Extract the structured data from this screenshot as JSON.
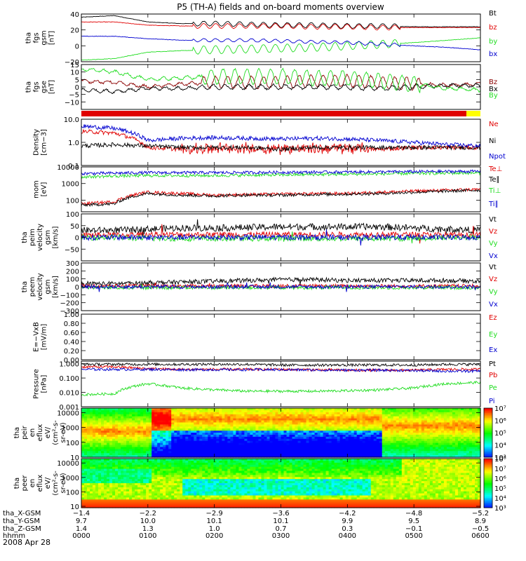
{
  "title": "P5 (TH-A) fields and on-board moments overview",
  "date": "2008 Apr 28",
  "colors": {
    "black": "#000000",
    "red": "#e00000",
    "green": "#22dd22",
    "blue": "#0000d0",
    "darkred": "#8b0000",
    "yellow": "#ffff00"
  },
  "chart_data": [
    {
      "type": "line",
      "id": "fgs-gsm",
      "ylabel": [
        "tha",
        "fgs",
        "gsm",
        "[nT]"
      ],
      "ylim": [
        -20,
        40
      ],
      "ticks": [
        {
          "v": 40,
          "t": "40"
        },
        {
          "v": 20,
          "t": "20"
        },
        {
          "v": 0,
          "t": "0"
        },
        {
          "v": -20,
          "t": "−20"
        }
      ],
      "series": [
        {
          "name": "Bt",
          "color": "black",
          "base": [
            36,
            38,
            30,
            28,
            28,
            27,
            26,
            26,
            25,
            25,
            24,
            24,
            24
          ]
        },
        {
          "name": "bz",
          "color": "red",
          "base": [
            30,
            30,
            26,
            25,
            25,
            25,
            25,
            24,
            24,
            23,
            23,
            23,
            23
          ]
        },
        {
          "name": "by",
          "color": "green",
          "base": [
            -18,
            -16,
            -8,
            -6,
            -5,
            -4,
            -3,
            -2,
            0,
            2,
            4,
            7,
            10
          ]
        },
        {
          "name": "bx",
          "color": "blue",
          "base": [
            12,
            12,
            9,
            7,
            7,
            7,
            6,
            5,
            4,
            2,
            0,
            -2,
            -5
          ]
        }
      ]
    },
    {
      "type": "line",
      "id": "fgs-gse",
      "ylabel": [
        "tha",
        "fgs",
        "gse",
        "[nT]"
      ],
      "ylim": [
        -15,
        15
      ],
      "ticks": [
        {
          "v": 15,
          "t": "15"
        },
        {
          "v": 10,
          "t": "10"
        },
        {
          "v": 5,
          "t": "5"
        },
        {
          "v": 0,
          "t": "0"
        },
        {
          "v": -5,
          "t": "−5"
        },
        {
          "v": -10,
          "t": "−10"
        }
      ],
      "series": [
        {
          "name": "Bz",
          "color": "darkred",
          "base": [
            4,
            3,
            0,
            2,
            3,
            3,
            3,
            4,
            4,
            3,
            2,
            1,
            2
          ]
        },
        {
          "name": "Bx",
          "color": "black",
          "base": [
            -2,
            -3,
            -1,
            -1,
            0,
            0,
            0,
            0,
            0,
            -1,
            0,
            1,
            1
          ]
        },
        {
          "name": "By",
          "color": "green",
          "base": [
            12,
            10,
            5,
            6,
            7,
            7,
            7,
            6,
            6,
            4,
            2,
            -1,
            -2
          ]
        }
      ]
    },
    {
      "type": "line",
      "id": "density",
      "ylabel": [
        "Density",
        "[cm−3]"
      ],
      "ylim": [
        0.1,
        10
      ],
      "log": true,
      "ticks": [
        {
          "v": 10,
          "t": "10.0"
        },
        {
          "v": 1,
          "t": "1.0"
        },
        {
          "v": 0.1,
          "t": "0.1"
        }
      ],
      "series": [
        {
          "name": "Ne",
          "color": "red",
          "base": [
            3,
            2.5,
            0.6,
            0.5,
            0.5,
            0.5,
            0.5,
            0.5,
            0.5,
            0.5,
            0.6,
            0.6,
            0.6
          ]
        },
        {
          "name": "Ni",
          "color": "black",
          "base": [
            0.7,
            0.8,
            0.7,
            0.6,
            0.6,
            0.6,
            0.5,
            0.6,
            0.6,
            0.6,
            0.6,
            0.6,
            0.6
          ]
        },
        {
          "name": "Npot",
          "color": "blue",
          "base": [
            5,
            4,
            1.2,
            1.5,
            1.6,
            1.5,
            1.4,
            1.5,
            1.4,
            1.2,
            1,
            0.8,
            0.7
          ]
        }
      ]
    },
    {
      "type": "line",
      "id": "temperature",
      "ylabel": [
        "mom",
        "[eV]"
      ],
      "ylim": [
        20,
        10000
      ],
      "log": true,
      "ticks": [
        {
          "v": 10000,
          "t": "10000"
        },
        {
          "v": 1000,
          "t": "1000"
        },
        {
          "v": 100,
          "t": "100"
        }
      ],
      "series": [
        {
          "name": "Te⊥",
          "color": "red",
          "base": [
            60,
            80,
            300,
            250,
            200,
            220,
            230,
            250,
            250,
            300,
            350,
            400,
            450
          ]
        },
        {
          "name": "Te∥",
          "color": "black",
          "base": [
            50,
            60,
            250,
            200,
            180,
            200,
            200,
            220,
            230,
            250,
            300,
            350,
            400
          ]
        },
        {
          "name": "Ti⊥",
          "color": "green",
          "base": [
            2500,
            2800,
            3000,
            3000,
            3000,
            3200,
            3300,
            3500,
            3600,
            3800,
            4000,
            4200,
            4300
          ]
        },
        {
          "name": "Ti∥",
          "color": "blue",
          "base": [
            4000,
            4200,
            4500,
            4500,
            4500,
            4600,
            4700,
            4800,
            4900,
            5000,
            5200,
            5300,
            5400
          ]
        }
      ]
    },
    {
      "type": "line",
      "id": "peim-velocity",
      "ylabel": [
        "tha",
        "peim",
        "velocity",
        "gsm",
        "[km/s]"
      ],
      "ylim": [
        -100,
        100
      ],
      "ticks": [
        {
          "v": 100,
          "t": "100"
        },
        {
          "v": 50,
          "t": "50"
        },
        {
          "v": 0,
          "t": "0"
        },
        {
          "v": -50,
          "t": "−50"
        }
      ],
      "series": [
        {
          "name": "Vt",
          "color": "black",
          "base": [
            30,
            30,
            35,
            40,
            40,
            42,
            45,
            45,
            45,
            45,
            40,
            35,
            30
          ]
        },
        {
          "name": "Vz",
          "color": "red",
          "base": [
            10,
            10,
            12,
            12,
            12,
            12,
            12,
            12,
            12,
            12,
            12,
            10,
            10
          ]
        },
        {
          "name": "Vy",
          "color": "green",
          "base": [
            0,
            0,
            -5,
            -5,
            -5,
            -5,
            -5,
            -5,
            -5,
            -5,
            -5,
            0,
            0
          ]
        },
        {
          "name": "Vx",
          "color": "blue",
          "base": [
            0,
            0,
            0,
            0,
            0,
            0,
            0,
            0,
            0,
            0,
            0,
            0,
            0
          ]
        }
      ]
    },
    {
      "type": "line",
      "id": "peem-velocity",
      "ylabel": [
        "tha",
        "peem",
        "velocity",
        "gsm",
        "[km/s]"
      ],
      "ylim": [
        -300,
        300
      ],
      "ticks": [
        {
          "v": 300,
          "t": "300"
        },
        {
          "v": 200,
          "t": "200"
        },
        {
          "v": 100,
          "t": "100"
        },
        {
          "v": 0,
          "t": "0"
        },
        {
          "v": -100,
          "t": "−100"
        },
        {
          "v": -200,
          "t": "−200"
        },
        {
          "v": -300,
          "t": "−300"
        }
      ],
      "series": [
        {
          "name": "Vt",
          "color": "black",
          "base": [
            40,
            40,
            50,
            60,
            70,
            80,
            90,
            90,
            80,
            80,
            80,
            80,
            70
          ]
        },
        {
          "name": "Vz",
          "color": "red",
          "base": [
            10,
            10,
            10,
            10,
            10,
            10,
            10,
            10,
            10,
            10,
            10,
            10,
            10
          ]
        },
        {
          "name": "Vy",
          "color": "green",
          "base": [
            -10,
            -10,
            -10,
            -10,
            -10,
            -10,
            -10,
            -10,
            -10,
            -10,
            -10,
            -10,
            -10
          ]
        },
        {
          "name": "Vx",
          "color": "blue",
          "base": [
            0,
            0,
            0,
            0,
            0,
            0,
            0,
            0,
            0,
            0,
            0,
            0,
            0
          ]
        }
      ]
    },
    {
      "type": "line",
      "id": "efield",
      "ylabel": [
        "E=−VxB",
        "[mV/m]"
      ],
      "ylim": [
        0,
        1
      ],
      "ticks": [
        {
          "v": 1,
          "t": "1.00"
        },
        {
          "v": 0.8,
          "t": "0.80"
        },
        {
          "v": 0.6,
          "t": "0.60"
        },
        {
          "v": 0.4,
          "t": "0.40"
        },
        {
          "v": 0.2,
          "t": "0.20"
        },
        {
          "v": 0,
          "t": "0.00"
        }
      ],
      "series": [
        {
          "name": "Ez",
          "color": "red",
          "base": []
        },
        {
          "name": "Ey",
          "color": "green",
          "base": []
        },
        {
          "name": "Ex",
          "color": "blue",
          "base": []
        }
      ]
    },
    {
      "type": "line",
      "id": "pressure",
      "ylabel": [
        "Pressure",
        "[nPa]"
      ],
      "ylim": [
        0.001,
        1.5
      ],
      "log": true,
      "ticks": [
        {
          "v": 1,
          "t": "1.000"
        },
        {
          "v": 0.1,
          "t": "0.100"
        },
        {
          "v": 0.01,
          "t": "0.010"
        },
        {
          "v": 0.001,
          "t": "0.001"
        }
      ],
      "series": [
        {
          "name": "Pt",
          "color": "black",
          "base": [
            0.9,
            0.9,
            0.9,
            0.9,
            0.9,
            0.9,
            0.8,
            0.8,
            0.8,
            0.8,
            0.8,
            0.9,
            0.9
          ]
        },
        {
          "name": "Pb",
          "color": "red",
          "base": [
            0.6,
            0.6,
            0.45,
            0.4,
            0.4,
            0.4,
            0.4,
            0.38,
            0.35,
            0.35,
            0.35,
            0.4,
            0.4
          ]
        },
        {
          "name": "Pe",
          "color": "green",
          "base": [
            0.007,
            0.008,
            0.04,
            0.02,
            0.015,
            0.012,
            0.012,
            0.012,
            0.013,
            0.015,
            0.02,
            0.04,
            0.05
          ]
        },
        {
          "name": "Pi",
          "color": "blue",
          "base": [
            0.4,
            0.4,
            0.4,
            0.38,
            0.38,
            0.38,
            0.38,
            0.36,
            0.35,
            0.35,
            0.33,
            0.3,
            0.3
          ]
        }
      ]
    },
    {
      "type": "heatmap",
      "id": "peir-eflux",
      "ylabel": [
        "tha",
        "peir",
        "en",
        "eflux",
        "eV/",
        "(cm²-s-",
        "sr-eV)"
      ],
      "ylim": [
        10,
        20000
      ],
      "log": true,
      "ticks": [
        {
          "v": 10000,
          "t": "10000"
        },
        {
          "v": 1000,
          "t": "1000"
        },
        {
          "v": 100,
          "t": "100"
        },
        {
          "v": 10,
          "t": "10"
        }
      ],
      "colorbar": {
        "range": [
          3,
          7
        ],
        "labels": [
          {
            "v": 7,
            "t": "10⁷"
          },
          {
            "v": 6,
            "t": "10⁶"
          },
          {
            "v": 5,
            "t": "10⁵"
          },
          {
            "v": 4,
            "t": "10⁴"
          },
          {
            "v": 3,
            "t": "10³"
          }
        ]
      }
    },
    {
      "type": "heatmap",
      "id": "peer-eflux",
      "ylabel": [
        "tha",
        "peer",
        "en",
        "eflux",
        "eV/",
        "(cm²-s-",
        "sr-eV)"
      ],
      "ylim": [
        8,
        20000
      ],
      "log": true,
      "ticks": [
        {
          "v": 10000,
          "t": "10000"
        },
        {
          "v": 1000,
          "t": "1000"
        },
        {
          "v": 100,
          "t": "100"
        },
        {
          "v": 10,
          "t": "10"
        }
      ],
      "colorbar": {
        "range": [
          3,
          8
        ],
        "labels": [
          {
            "v": 8,
            "t": "10⁸"
          },
          {
            "v": 7,
            "t": "10⁷"
          },
          {
            "v": 6,
            "t": "10⁶"
          },
          {
            "v": 5,
            "t": "10⁵"
          },
          {
            "v": 4,
            "t": "10⁴"
          },
          {
            "v": 3,
            "t": "10³"
          }
        ]
      }
    }
  ],
  "xaxis": {
    "rows": [
      {
        "label": "tha_X-GSM",
        "values": [
          "−1.4",
          "−2.2",
          "−2.9",
          "−3.6",
          "−4.2",
          "−4.8",
          "−5.2"
        ]
      },
      {
        "label": "tha_Y-GSM",
        "values": [
          "9.7",
          "10.0",
          "10.1",
          "10.1",
          "9.9",
          "9.5",
          "8.9"
        ]
      },
      {
        "label": "tha_Z-GSM",
        "values": [
          "1.4",
          "1.3",
          "1.0",
          "0.7",
          "0.3",
          "−0.1",
          "−0.5"
        ]
      },
      {
        "label": "hhmm",
        "values": [
          "0000",
          "0100",
          "0200",
          "0300",
          "0400",
          "0500",
          "0600"
        ]
      }
    ]
  }
}
